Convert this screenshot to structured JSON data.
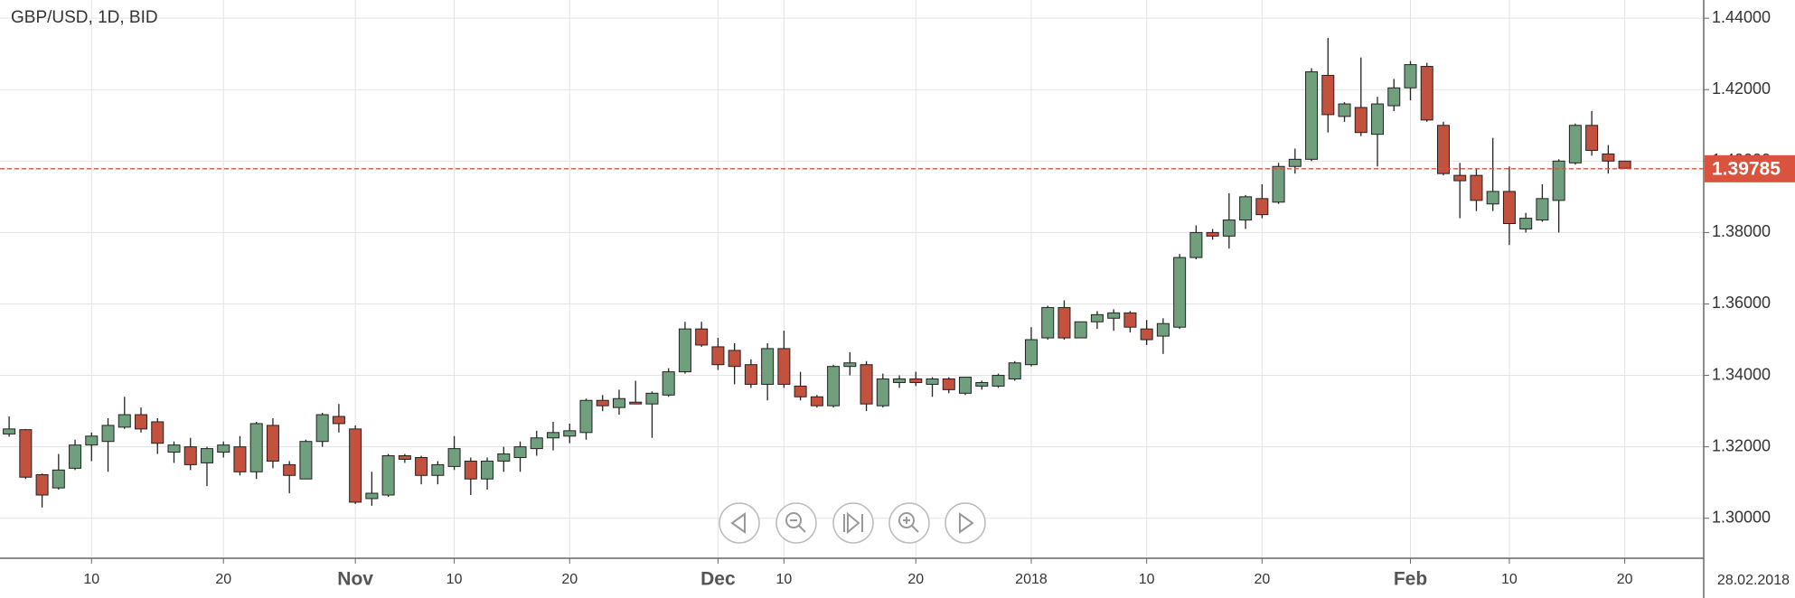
{
  "chart_data": {
    "type": "candlestick",
    "title": "GBP/USD, 1D, BID",
    "date_label": "28.02.2018",
    "up_color": "#6f9f7c",
    "down_color": "#c2513e",
    "last_price": 1.39785,
    "last_price_color": "#d9533e",
    "ylim": [
      1.2888,
      1.4451
    ],
    "yticks": [
      {
        "value": 1.3,
        "label": "1.30000"
      },
      {
        "value": 1.32,
        "label": "1.32000"
      },
      {
        "value": 1.34,
        "label": "1.34000"
      },
      {
        "value": 1.36,
        "label": "1.36000"
      },
      {
        "value": 1.38,
        "label": "1.38000"
      },
      {
        "value": 1.4,
        "label": "1.40000"
      },
      {
        "value": 1.42,
        "label": "1.42000"
      },
      {
        "value": 1.44,
        "label": "1.44000"
      }
    ],
    "grid": true,
    "categories": [
      null,
      null,
      null,
      null,
      null,
      "10",
      null,
      null,
      null,
      null,
      null,
      null,
      null,
      "20",
      null,
      null,
      null,
      null,
      null,
      null,
      null,
      "Nov",
      null,
      null,
      null,
      null,
      null,
      "10",
      null,
      null,
      null,
      null,
      null,
      null,
      "20",
      null,
      null,
      null,
      null,
      null,
      null,
      null,
      null,
      "Dec",
      null,
      null,
      null,
      "10",
      null,
      null,
      null,
      null,
      null,
      null,
      null,
      "20",
      null,
      null,
      null,
      null,
      null,
      null,
      "2018",
      null,
      null,
      null,
      null,
      null,
      null,
      "10",
      null,
      null,
      null,
      null,
      null,
      null,
      "20",
      null,
      null,
      null,
      null,
      null,
      null,
      null,
      null,
      "Feb",
      null,
      null,
      null,
      null,
      null,
      "10",
      null,
      null,
      null,
      null,
      null,
      null,
      "20"
    ],
    "open": [
      1.3236,
      1.3248,
      1.3122,
      1.3085,
      1.314,
      1.3205,
      1.3215,
      1.3255,
      1.329,
      1.327,
      1.3185,
      1.32,
      1.3155,
      1.3185,
      1.32,
      1.313,
      1.326,
      1.315,
      1.311,
      1.3215,
      1.3285,
      1.325,
      1.3055,
      1.3065,
      1.3175,
      1.317,
      1.312,
      1.3145,
      1.316,
      1.311,
      1.316,
      1.317,
      1.3195,
      1.3225,
      1.323,
      1.324,
      1.333,
      1.331,
      1.3325,
      1.332,
      1.3345,
      1.341,
      1.353,
      1.348,
      1.347,
      1.343,
      1.3375,
      1.3475,
      1.337,
      1.334,
      1.3315,
      1.3425,
      1.343,
      1.3315,
      1.338,
      1.339,
      1.3375,
      1.339,
      1.335,
      1.337,
      1.337,
      1.339,
      1.343,
      1.3505,
      1.359,
      1.3505,
      1.355,
      1.356,
      1.3575,
      1.353,
      1.351,
      1.3535,
      1.373,
      1.38,
      1.379,
      1.3835,
      1.3895,
      1.3885,
      1.3985,
      1.4005,
      1.424,
      1.4125,
      1.415,
      1.4075,
      1.4155,
      1.4205,
      1.4265,
      1.41,
      1.396,
      1.396,
      1.388,
      1.3915,
      1.381,
      1.3835,
      1.389,
      1.3995,
      1.41,
      1.402,
      1.4
    ],
    "high": [
      1.3285,
      1.325,
      1.3125,
      1.318,
      1.322,
      1.324,
      1.328,
      1.334,
      1.331,
      1.328,
      1.3215,
      1.3225,
      1.32,
      1.3215,
      1.323,
      1.327,
      1.328,
      1.316,
      1.322,
      1.3295,
      1.332,
      1.326,
      1.313,
      1.318,
      1.318,
      1.3175,
      1.316,
      1.323,
      1.317,
      1.317,
      1.32,
      1.3215,
      1.3245,
      1.327,
      1.3265,
      1.3335,
      1.3345,
      1.336,
      1.3385,
      1.3355,
      1.342,
      1.355,
      1.355,
      1.3505,
      1.349,
      1.3445,
      1.349,
      1.3525,
      1.341,
      1.3345,
      1.343,
      1.3465,
      1.344,
      1.3405,
      1.34,
      1.341,
      1.3395,
      1.3395,
      1.3395,
      1.3385,
      1.3405,
      1.344,
      1.3535,
      1.3595,
      1.361,
      1.355,
      1.358,
      1.3585,
      1.358,
      1.3555,
      1.356,
      1.374,
      1.382,
      1.381,
      1.391,
      1.3905,
      1.3935,
      1.3995,
      1.4035,
      1.426,
      1.4345,
      1.4165,
      1.429,
      1.418,
      1.423,
      1.428,
      1.4275,
      1.411,
      1.3995,
      1.398,
      1.4065,
      1.3985,
      1.3855,
      1.3935,
      1.4005,
      1.4105,
      1.414,
      1.4045,
      1.4
    ],
    "low": [
      1.3228,
      1.311,
      1.303,
      1.308,
      1.3135,
      1.316,
      1.313,
      1.325,
      1.324,
      1.318,
      1.3155,
      1.3135,
      1.309,
      1.317,
      1.312,
      1.311,
      1.314,
      1.307,
      1.311,
      1.32,
      1.324,
      1.304,
      1.3035,
      1.306,
      1.3155,
      1.3095,
      1.3095,
      1.3135,
      1.3065,
      1.308,
      1.313,
      1.313,
      1.3175,
      1.319,
      1.321,
      1.322,
      1.33,
      1.329,
      1.332,
      1.3225,
      1.334,
      1.3405,
      1.348,
      1.3415,
      1.3375,
      1.3365,
      1.333,
      1.3365,
      1.333,
      1.331,
      1.331,
      1.34,
      1.33,
      1.331,
      1.3365,
      1.337,
      1.334,
      1.335,
      1.3345,
      1.336,
      1.3365,
      1.3385,
      1.3425,
      1.35,
      1.35,
      1.3505,
      1.353,
      1.3525,
      1.352,
      1.3485,
      1.346,
      1.353,
      1.3725,
      1.378,
      1.3755,
      1.381,
      1.384,
      1.388,
      1.3965,
      1.4,
      1.408,
      1.411,
      1.407,
      1.3985,
      1.414,
      1.417,
      1.411,
      1.396,
      1.384,
      1.386,
      1.386,
      1.3765,
      1.38,
      1.383,
      1.38,
      1.399,
      1.4015,
      1.3965,
      1.398
    ],
    "close": [
      1.325,
      1.3115,
      1.3065,
      1.3135,
      1.3205,
      1.323,
      1.326,
      1.329,
      1.325,
      1.321,
      1.3205,
      1.315,
      1.3195,
      1.3205,
      1.313,
      1.3265,
      1.316,
      1.312,
      1.3215,
      1.329,
      1.3265,
      1.3045,
      1.307,
      1.3175,
      1.3165,
      1.312,
      1.315,
      1.3195,
      1.311,
      1.316,
      1.318,
      1.32,
      1.3225,
      1.324,
      1.3245,
      1.333,
      1.3315,
      1.3335,
      1.332,
      1.335,
      1.341,
      1.353,
      1.3485,
      1.343,
      1.3425,
      1.3375,
      1.3475,
      1.3375,
      1.334,
      1.3315,
      1.3425,
      1.3435,
      1.332,
      1.339,
      1.339,
      1.338,
      1.339,
      1.336,
      1.3395,
      1.338,
      1.34,
      1.3435,
      1.35,
      1.359,
      1.3505,
      1.355,
      1.357,
      1.3575,
      1.3535,
      1.35,
      1.3545,
      1.373,
      1.38,
      1.379,
      1.3835,
      1.39,
      1.385,
      1.3985,
      1.4005,
      1.425,
      1.413,
      1.416,
      1.408,
      1.416,
      1.4205,
      1.427,
      1.4115,
      1.3965,
      1.3945,
      1.389,
      1.3915,
      1.3825,
      1.384,
      1.3895,
      1.4,
      1.41,
      1.403,
      1.4,
      1.398
    ]
  }
}
